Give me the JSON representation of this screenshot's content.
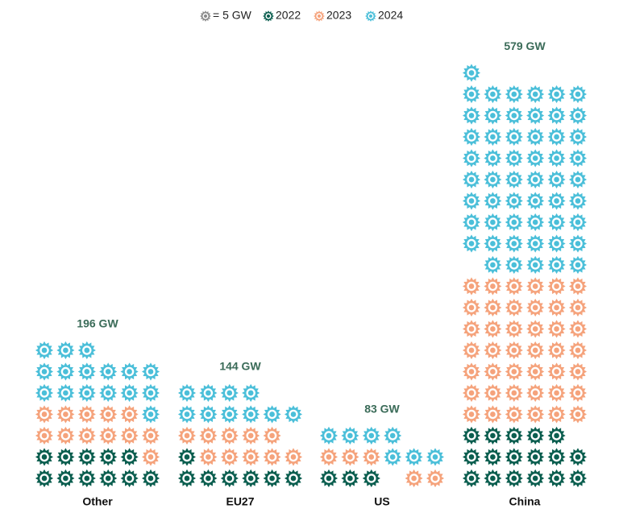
{
  "chart_data": {
    "type": "pictogram",
    "icon_value": 5,
    "icon_label": "= 5 GW",
    "icon_color": "#8a8a8a",
    "categories": [
      "Other",
      "EU27",
      "US",
      "China"
    ],
    "series": [
      {
        "name": "2022",
        "color": "#0b5e4f",
        "values": [
          55,
          35,
          18,
          87
        ]
      },
      {
        "name": "2023",
        "color": "#f5a37c",
        "values": [
          60,
          53,
          27,
          217
        ]
      },
      {
        "name": "2024",
        "color": "#4bbfd9",
        "values": [
          81,
          56,
          38,
          275
        ]
      }
    ],
    "totals": [
      196,
      144,
      83,
      579
    ],
    "total_labels": [
      "196 GW",
      "144 GW",
      "83 GW",
      "579 GW"
    ],
    "icons_per_row": 6
  }
}
